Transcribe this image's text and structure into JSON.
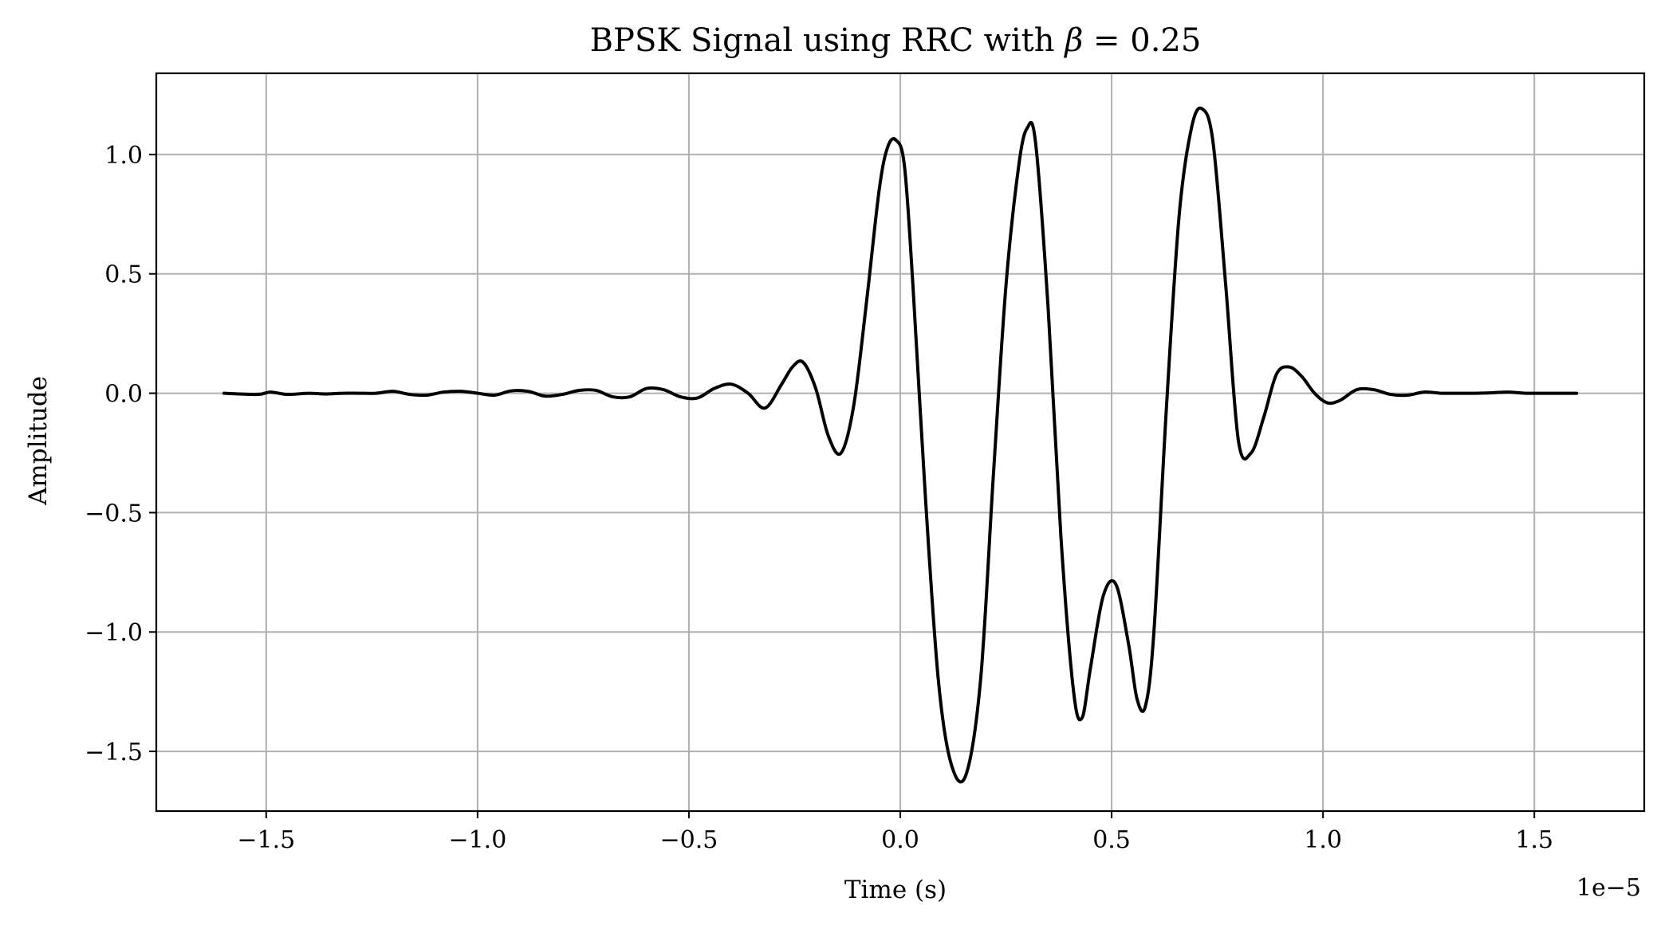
{
  "chart_data": {
    "type": "line",
    "title_main": "BPSK Signal using RRC with ",
    "title_symbol": "β",
    "title_value": " = 0.25",
    "xlabel": "Time (s)",
    "ylabel": "Amplitude",
    "x_offset_label": "1e−5",
    "x_scale_exponent": -5,
    "xlim": [
      -1.76,
      1.76
    ],
    "ylim": [
      -1.75,
      1.34
    ],
    "grid": true,
    "legend": "none",
    "colors": {
      "line": "#000000",
      "grid": "#b0b0b0",
      "axes": "#000000",
      "background": "#ffffff"
    },
    "x_ticks": [
      {
        "value": -1.5,
        "label": "−1.5"
      },
      {
        "value": -1.0,
        "label": "−1.0"
      },
      {
        "value": -0.5,
        "label": "−0.5"
      },
      {
        "value": 0.0,
        "label": "0.0"
      },
      {
        "value": 0.5,
        "label": "0.5"
      },
      {
        "value": 1.0,
        "label": "1.0"
      },
      {
        "value": 1.5,
        "label": "1.5"
      }
    ],
    "y_ticks": [
      {
        "value": 1.0,
        "label": "1.0"
      },
      {
        "value": 0.5,
        "label": "0.5"
      },
      {
        "value": 0.0,
        "label": "0.0"
      },
      {
        "value": -0.5,
        "label": "−0.5"
      },
      {
        "value": -1.0,
        "label": "−1.0"
      },
      {
        "value": -1.5,
        "label": "−1.5"
      }
    ],
    "series": [
      {
        "x": [
          -1.6,
          -1.52,
          -1.49,
          -1.45,
          -1.4,
          -1.36,
          -1.32,
          -1.28,
          -1.24,
          -1.2,
          -1.16,
          -1.12,
          -1.08,
          -1.04,
          -1.0,
          -0.96,
          -0.92,
          -0.88,
          -0.84,
          -0.8,
          -0.76,
          -0.72,
          -0.68,
          -0.64,
          -0.6,
          -0.56,
          -0.52,
          -0.48,
          -0.44,
          -0.4,
          -0.36,
          -0.32,
          -0.28,
          -0.255,
          -0.23,
          -0.2,
          -0.17,
          -0.14,
          -0.11,
          -0.08,
          -0.05,
          -0.03,
          -0.01,
          0.01,
          0.03,
          0.06,
          0.09,
          0.12,
          0.155,
          0.19,
          0.22,
          0.25,
          0.28,
          0.3,
          0.32,
          0.35,
          0.38,
          0.41,
          0.43,
          0.45,
          0.48,
          0.51,
          0.54,
          0.56,
          0.58,
          0.6,
          0.63,
          0.66,
          0.69,
          0.715,
          0.74,
          0.77,
          0.8,
          0.83,
          0.86,
          0.89,
          0.92,
          0.95,
          0.98,
          1.01,
          1.04,
          1.08,
          1.12,
          1.16,
          1.2,
          1.24,
          1.28,
          1.32,
          1.36,
          1.4,
          1.44,
          1.48,
          1.52,
          1.56,
          1.6
        ],
        "y": [
          0.0,
          -0.005,
          0.005,
          -0.005,
          0.0,
          -0.003,
          0.0,
          0.0,
          0.0,
          0.008,
          -0.005,
          -0.008,
          0.005,
          0.008,
          0.0,
          -0.008,
          0.01,
          0.008,
          -0.012,
          -0.005,
          0.012,
          0.012,
          -0.015,
          -0.015,
          0.02,
          0.015,
          -0.015,
          -0.02,
          0.02,
          0.038,
          0.0,
          -0.062,
          0.04,
          0.11,
          0.13,
          0.02,
          -0.18,
          -0.25,
          -0.05,
          0.38,
          0.85,
          1.03,
          1.06,
          0.95,
          0.45,
          -0.45,
          -1.2,
          -1.55,
          -1.6,
          -1.2,
          -0.35,
          0.45,
          0.95,
          1.11,
          1.05,
          0.35,
          -0.6,
          -1.25,
          -1.36,
          -1.15,
          -0.85,
          -0.8,
          -1.05,
          -1.28,
          -1.31,
          -1.0,
          -0.05,
          0.75,
          1.12,
          1.19,
          1.05,
          0.45,
          -0.2,
          -0.25,
          -0.1,
          0.08,
          0.11,
          0.07,
          0.0,
          -0.04,
          -0.03,
          0.015,
          0.015,
          -0.005,
          -0.008,
          0.005,
          0.0,
          0.0,
          0.0,
          0.002,
          0.005,
          0.0,
          0.0,
          0.0,
          0.0
        ]
      }
    ]
  }
}
